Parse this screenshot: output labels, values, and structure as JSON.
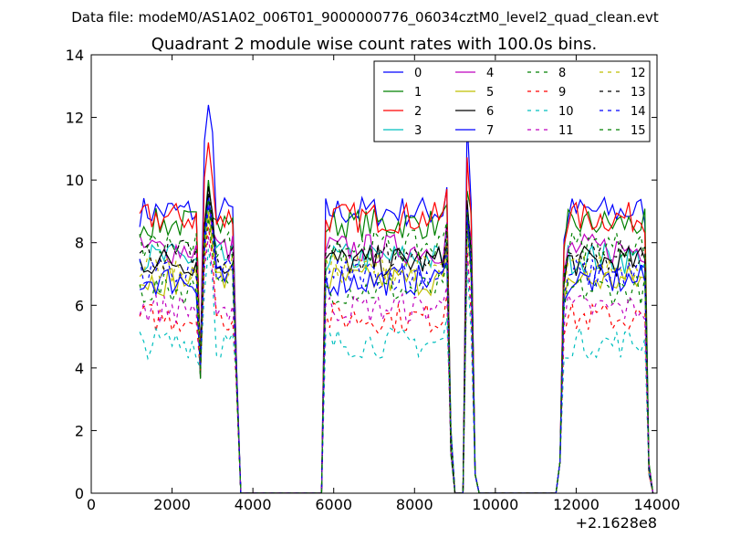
{
  "figure": {
    "suptitle": "Data file: modeM0/AS1A02_006T01_9000000776_06034cztM0_level2_quad_clean.evt"
  },
  "chart_data": {
    "type": "line",
    "title": "Quadrant 2 module wise count rates with 100.0s bins.",
    "xlabel": "",
    "ylabel": "",
    "x_offset_label": "+2.1628e8",
    "xlim": [
      0,
      14000
    ],
    "ylim": [
      0,
      14
    ],
    "xticks": [
      0,
      2000,
      4000,
      6000,
      8000,
      10000,
      12000,
      14000
    ],
    "xtick_labels": [
      "0",
      "2000",
      "4000",
      "6000",
      "8000",
      "10000",
      "12000",
      "14000"
    ],
    "yticks": [
      0,
      2,
      4,
      6,
      8,
      10,
      12,
      14
    ],
    "ytick_labels": [
      "0",
      "2",
      "4",
      "6",
      "8",
      "10",
      "12",
      "14"
    ],
    "grid": false,
    "legend_position": "top-right",
    "legend_columns": 4,
    "segments": [
      {
        "start": 1200,
        "end": 3600,
        "spike_at": 2900,
        "dip_at": 2700
      },
      {
        "start": 5800,
        "end": 8800,
        "spike_at": 8800,
        "dip_at": null
      },
      {
        "start": 9300,
        "end": 9500,
        "spike_at": 9350,
        "dip_at": null
      },
      {
        "start": 11800,
        "end": 13800,
        "spike_at": null,
        "dip_at": null
      }
    ],
    "flat_zero_ranges": [
      [
        3700,
        5700
      ],
      [
        9000,
        9200
      ],
      [
        9700,
        11500
      ]
    ],
    "series": [
      {
        "name": "0",
        "color": "#0000ff",
        "style": "solid",
        "level": 9.0,
        "spike": 12.4
      },
      {
        "name": "1",
        "color": "#008000",
        "style": "solid",
        "level": 8.6,
        "spike": 10.0
      },
      {
        "name": "2",
        "color": "#ff0000",
        "style": "solid",
        "level": 8.8,
        "spike": 11.2
      },
      {
        "name": "3",
        "color": "#00bfbf",
        "style": "solid",
        "level": 7.5,
        "spike": 9.3
      },
      {
        "name": "4",
        "color": "#bf00bf",
        "style": "solid",
        "level": 7.8,
        "spike": 9.4
      },
      {
        "name": "5",
        "color": "#bfbf00",
        "style": "solid",
        "level": 6.8,
        "spike": 9.0
      },
      {
        "name": "6",
        "color": "#000000",
        "style": "solid",
        "level": 7.4,
        "spike": 9.8
      },
      {
        "name": "7",
        "color": "#0000ff",
        "style": "solid",
        "level": 6.8,
        "spike": 9.5
      },
      {
        "name": "8",
        "color": "#008000",
        "style": "dashed",
        "level": 6.5,
        "spike": 8.8
      },
      {
        "name": "9",
        "color": "#ff0000",
        "style": "dashed",
        "level": 5.6,
        "spike": 8.5
      },
      {
        "name": "10",
        "color": "#00bfbf",
        "style": "dashed",
        "level": 4.8,
        "spike": 7.8
      },
      {
        "name": "11",
        "color": "#bf00bf",
        "style": "dashed",
        "level": 5.9,
        "spike": 8.2
      },
      {
        "name": "12",
        "color": "#bfbf00",
        "style": "dashed",
        "level": 7.2,
        "spike": 9.0
      },
      {
        "name": "13",
        "color": "#000000",
        "style": "dashed",
        "level": 7.6,
        "spike": 9.6
      },
      {
        "name": "14",
        "color": "#0000ff",
        "style": "dashed",
        "level": 7.0,
        "spike": 9.2
      },
      {
        "name": "15",
        "color": "#008000",
        "style": "dashed",
        "level": 7.9,
        "spike": 9.4
      }
    ]
  }
}
